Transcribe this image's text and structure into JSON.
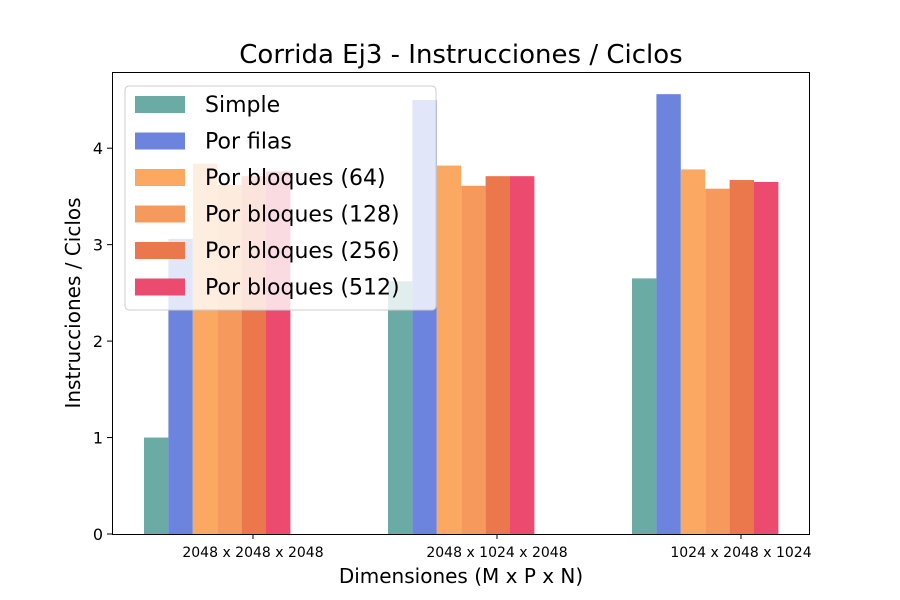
{
  "chart_data": {
    "type": "bar",
    "title": "Corrida Ej3 - Instrucciones / Ciclos",
    "xlabel": "Dimensiones (M x P x N)",
    "ylabel": "Instrucciones / Ciclos",
    "categories": [
      "2048 x 2048 x 2048",
      "2048 x 1024 x 2048",
      "1024 x 2048 x 1024"
    ],
    "ylim": [
      0,
      4.79
    ],
    "yticks": [
      0,
      1,
      2,
      3,
      4
    ],
    "grid": false,
    "legend_position": "top-left",
    "series": [
      {
        "name": "Simple",
        "color": "#6aaba6",
        "values": [
          1.0,
          2.62,
          2.65
        ]
      },
      {
        "name": "Por filas",
        "color": "#6c84de",
        "values": [
          3.06,
          4.5,
          4.56
        ]
      },
      {
        "name": "Por bloques (64)",
        "color": "#fba862",
        "values": [
          3.84,
          3.82,
          3.78
        ]
      },
      {
        "name": "Por bloques (128)",
        "color": "#f59a5c",
        "values": [
          3.62,
          3.61,
          3.58
        ]
      },
      {
        "name": "Por bloques (256)",
        "color": "#ea784c",
        "values": [
          3.71,
          3.71,
          3.67
        ]
      },
      {
        "name": "Por bloques (512)",
        "color": "#ec4a6f",
        "values": [
          3.76,
          3.71,
          3.65
        ]
      }
    ]
  }
}
